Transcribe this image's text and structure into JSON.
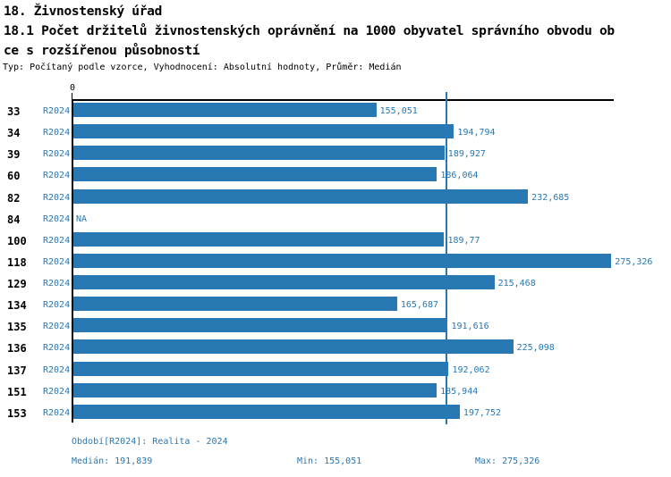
{
  "header": {
    "title_line1": "18. Živnostenský úřad",
    "title_line2": "18.1 Počet držitelů živnostenských oprávnění na 1000 obyvatel správního obvodu ob",
    "title_line3": "ce s rozšířenou působností",
    "subtitle": "Typ: Počítaný podle vzorce, Vyhodnocení: Absolutní hodnoty, Průměr: Medián"
  },
  "axis": {
    "zero_label": "0"
  },
  "colors": {
    "bar": "#2878b4",
    "text_blue": "#2878b4",
    "median_line": "#2878b4",
    "axis": "#000000"
  },
  "footer": {
    "period_note": "Období[R2024]: Realita - 2024",
    "median_label": "Medián: 191,839",
    "min_label": "Min: 155,051",
    "max_label": "Max: 275,326"
  },
  "chart_data": {
    "type": "bar",
    "orientation": "horizontal",
    "title": "18.1 Počet držitelů živnostenských oprávnění na 1000 obyvatel správního obvodu obce s rozšířenou působností",
    "series_name": "R2024",
    "categories": [
      "33",
      "34",
      "39",
      "60",
      "82",
      "84",
      "100",
      "118",
      "129",
      "134",
      "135",
      "136",
      "137",
      "151",
      "153"
    ],
    "values": [
      155.051,
      194.794,
      189.927,
      186.064,
      232.685,
      null,
      189.77,
      275.326,
      215.468,
      165.687,
      191.616,
      225.098,
      192.062,
      185.944,
      197.752
    ],
    "value_labels": [
      "155,051",
      "194,794",
      "189,927",
      "186,064",
      "232,685",
      "NA",
      "189,77",
      "275,326",
      "215,468",
      "165,687",
      "191,616",
      "225,098",
      "192,062",
      "185,944",
      "197,752"
    ],
    "median": 191.839,
    "min": 155.051,
    "max": 275.326,
    "xlim": [
      0,
      296.7
    ],
    "grid": false,
    "legend": "none",
    "median_reference_line": 191.839
  },
  "rows": [
    {
      "code": "33",
      "period": "R2024",
      "value": 155.051,
      "label": "155,051"
    },
    {
      "code": "34",
      "period": "R2024",
      "value": 194.794,
      "label": "194,794"
    },
    {
      "code": "39",
      "period": "R2024",
      "value": 189.927,
      "label": "189,927"
    },
    {
      "code": "60",
      "period": "R2024",
      "value": 186.064,
      "label": "186,064"
    },
    {
      "code": "82",
      "period": "R2024",
      "value": 232.685,
      "label": "232,685"
    },
    {
      "code": "84",
      "period": "R2024",
      "value": null,
      "label": "NA"
    },
    {
      "code": "100",
      "period": "R2024",
      "value": 189.77,
      "label": "189,77"
    },
    {
      "code": "118",
      "period": "R2024",
      "value": 275.326,
      "label": "275,326"
    },
    {
      "code": "129",
      "period": "R2024",
      "value": 215.468,
      "label": "215,468"
    },
    {
      "code": "134",
      "period": "R2024",
      "value": 165.687,
      "label": "165,687"
    },
    {
      "code": "135",
      "period": "R2024",
      "value": 191.616,
      "label": "191,616"
    },
    {
      "code": "136",
      "period": "R2024",
      "value": 225.098,
      "label": "225,098"
    },
    {
      "code": "137",
      "period": "R2024",
      "value": 192.062,
      "label": "192,062"
    },
    {
      "code": "151",
      "period": "R2024",
      "value": 185.944,
      "label": "185,944"
    },
    {
      "code": "153",
      "period": "R2024",
      "value": 197.752,
      "label": "197,752"
    }
  ]
}
